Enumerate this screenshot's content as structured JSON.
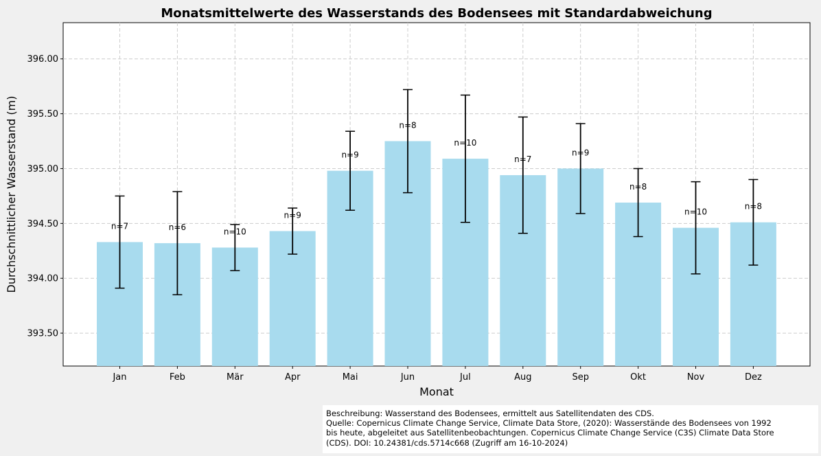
{
  "chart_data": {
    "type": "bar",
    "title": "Monatsmittelwerte des Wasserstands des Bodensees mit Standardabweichung",
    "xlabel": "Monat",
    "ylabel": "Durchschnittlicher Wasserstand (m)",
    "categories": [
      "Jan",
      "Feb",
      "Mär",
      "Apr",
      "Mai",
      "Jun",
      "Jul",
      "Aug",
      "Sep",
      "Okt",
      "Nov",
      "Dez"
    ],
    "values": [
      394.33,
      394.32,
      394.28,
      394.43,
      394.98,
      395.25,
      395.09,
      394.94,
      395.0,
      394.69,
      394.46,
      394.51
    ],
    "std": [
      0.42,
      0.47,
      0.21,
      0.21,
      0.36,
      0.47,
      0.58,
      0.53,
      0.41,
      0.31,
      0.42,
      0.39
    ],
    "n_labels": [
      "n=7",
      "n=6",
      "n=10",
      "n=9",
      "n=9",
      "n=8",
      "n=10",
      "n=7",
      "n=9",
      "n=8",
      "n=10",
      "n=8"
    ],
    "ylim": [
      393.2,
      396.33
    ],
    "yticks": [
      "393.50",
      "394.00",
      "394.50",
      "395.00",
      "395.50",
      "396.00"
    ],
    "ytick_values": [
      393.5,
      394.0,
      394.5,
      395.0,
      395.5,
      396.0
    ],
    "grid": true,
    "bar_color": "#a8dbee",
    "error_color": "#000000"
  },
  "note": {
    "line1": "Beschreibung: Wasserstand des Bodensees, ermittelt aus Satellitendaten des CDS.",
    "line2": "Quelle: Copernicus Climate Change Service, Climate Data Store, (2020): Wasserstände des Bodensees von 1992",
    "line3": "bis heute, abgeleitet aus Satellitenbeobachtungen. Copernicus Climate Change Service (C3S) Climate Data Store",
    "line4": "(CDS). DOI: 10.24381/cds.5714c668 (Zugriff am 16-10-2024)"
  }
}
